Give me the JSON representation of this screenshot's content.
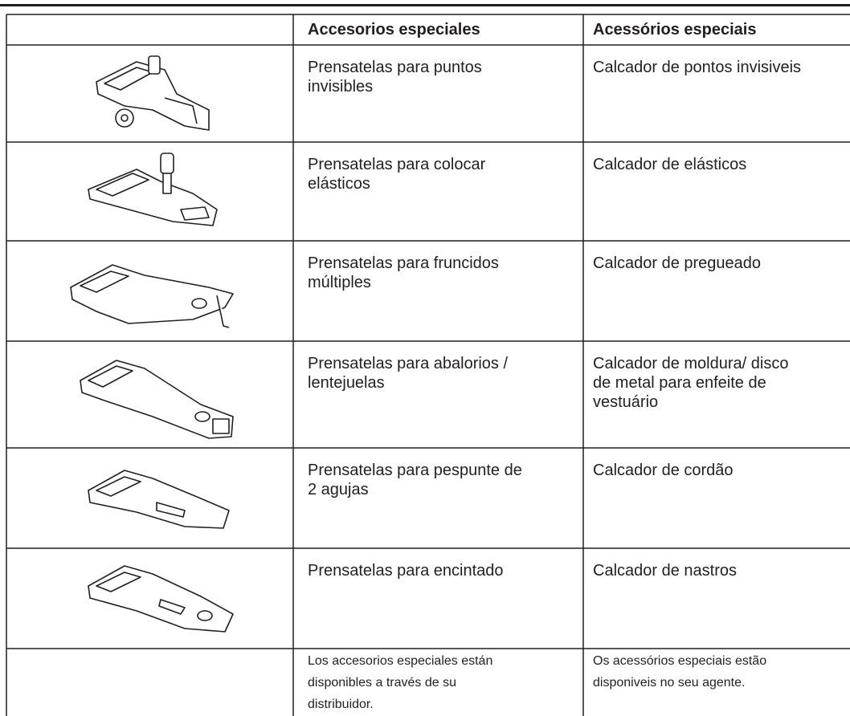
{
  "table": {
    "headers": [
      "Accesorios especiales",
      "Acessórios especiais"
    ],
    "rows": [
      {
        "es": [
          "Prensatelas para puntos",
          "invisibles"
        ],
        "pt": [
          "Calcador de pontos invisiveis"
        ]
      },
      {
        "es": [
          "Prensatelas para colocar",
          "elásticos"
        ],
        "pt": [
          "Calcador de elásticos"
        ]
      },
      {
        "es": [
          "Prensatelas para fruncidos",
          "múltiples"
        ],
        "pt": [
          "Calcador  de pregueado"
        ]
      },
      {
        "es": [
          "Prensatelas para abalorios /",
          "lentejuelas"
        ],
        "pt": [
          "Calcador de moldura/ disco",
          "de metal para enfeite de",
          "vestuário"
        ]
      },
      {
        "es": [
          "Prensatelas para pespunte de",
          "2 agujas"
        ],
        "pt": [
          "Calcador de cordão"
        ]
      },
      {
        "es": [
          "Prensatelas para encintado"
        ],
        "pt": [
          "Calcador de nastros"
        ]
      }
    ],
    "footnote": {
      "es": [
        "Los accesorios especiales están",
        "disponibles a través de su",
        "distribuidor."
      ],
      "pt": [
        "Os acessórios especiais estão",
        "disponiveis no seu agente."
      ]
    }
  }
}
